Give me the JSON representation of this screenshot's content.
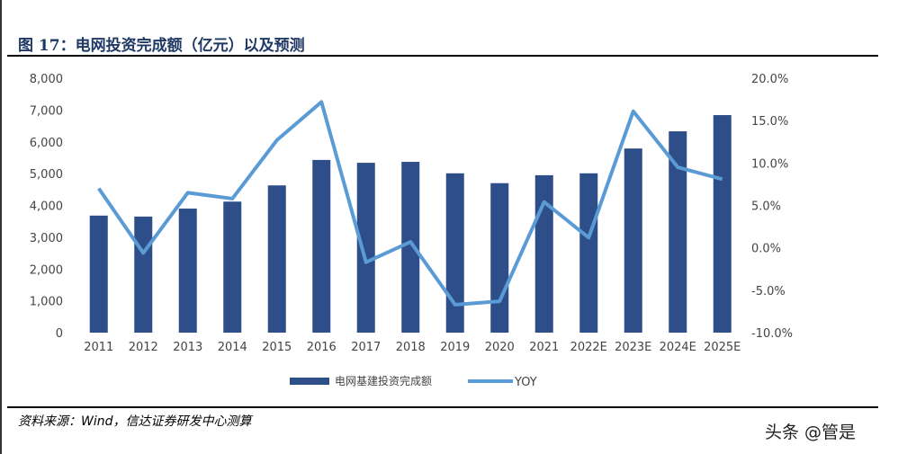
{
  "header": {
    "title": "图 17：电网投资完成额（亿元）以及预测"
  },
  "footer": {
    "source": "资料来源：Wind，信达证券研发中心测算",
    "watermark": "头条 @管是"
  },
  "chart_data": {
    "type": "bar+line",
    "categories": [
      "2011",
      "2012",
      "2013",
      "2014",
      "2015",
      "2016",
      "2017",
      "2018",
      "2019",
      "2020",
      "2021",
      "2022E",
      "2023E",
      "2024E",
      "2025E"
    ],
    "series": [
      {
        "name": "电网基建投资完成额",
        "type": "bar",
        "axis": "left",
        "color": "#2e4e8a",
        "values": [
          3680,
          3650,
          3900,
          4120,
          4630,
          5430,
          5340,
          5370,
          5010,
          4700,
          4950,
          5010,
          5790,
          6330,
          6840
        ]
      },
      {
        "name": "YOY",
        "type": "line",
        "axis": "right",
        "color": "#5b9bd5",
        "values": [
          7.0,
          -0.6,
          6.5,
          5.8,
          12.7,
          17.2,
          -1.7,
          0.7,
          -6.7,
          -6.3,
          5.4,
          1.2,
          16.1,
          9.5,
          8.1
        ]
      }
    ],
    "y_left": {
      "range": [
        0,
        8000
      ],
      "ticks": [
        "0",
        "1,000",
        "2,000",
        "3,000",
        "4,000",
        "5,000",
        "6,000",
        "7,000",
        "8,000"
      ]
    },
    "y_right": {
      "range": [
        -10,
        20
      ],
      "ticks": [
        "-10.0%",
        "-5.0%",
        "0.0%",
        "5.0%",
        "10.0%",
        "15.0%",
        "20.0%"
      ]
    },
    "grid": false,
    "legend": "bottom"
  }
}
